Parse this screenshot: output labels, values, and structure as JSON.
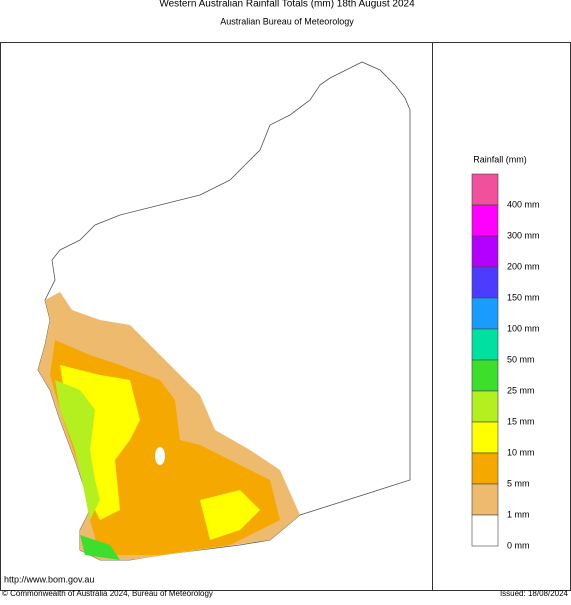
{
  "header": {
    "title": "Western Australian Rainfall Totals (mm) 18th August 2024",
    "subtitle": "Australian Bureau of Meteorology"
  },
  "legend": {
    "title": "Rainfall (mm)",
    "colors": [
      "#f0509c",
      "#ff00ff",
      "#b400ff",
      "#4b3cff",
      "#1a9cff",
      "#00e0a0",
      "#3ce02c",
      "#b4f020",
      "#ffff00",
      "#f5a800",
      "#eebb6e",
      "#ffffff"
    ],
    "labels": [
      "400 mm",
      "300 mm",
      "200 mm",
      "150 mm",
      "100 mm",
      "50 mm",
      "25 mm",
      "15 mm",
      "10 mm",
      "5 mm",
      "1 mm",
      "0 mm"
    ]
  },
  "footer": {
    "url": "http://www.bom.gov.au",
    "copyright": "© Commonwealth of Australia 2024, Bureau of Meteorology",
    "issued": "Issued: 18/08/2024"
  }
}
